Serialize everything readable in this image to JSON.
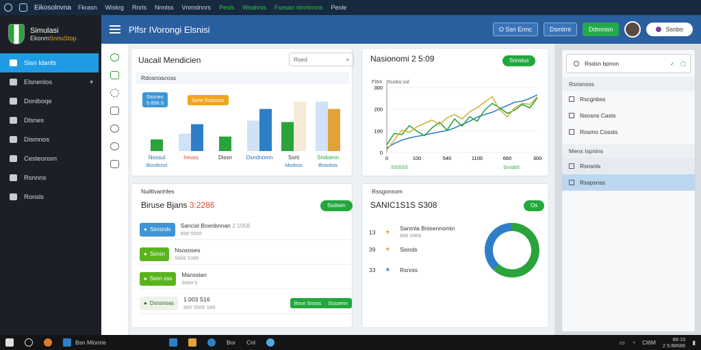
{
  "topbar": {
    "app_name": "Eikosolnvna",
    "menu": [
      "Fkrasn",
      "Wiskrg",
      "Rnrls",
      "Nnnlss",
      "Vnmslnnrs",
      "Pesls",
      "Weahnis",
      "Fsesan nlnnlnnns",
      "Peole"
    ],
    "menu_colors": [
      "#cdd6df",
      "#cdd6df",
      "#cdd6df",
      "#cdd6df",
      "#cdd6df",
      "#33c14a",
      "#33c14a",
      "#33c14a",
      "#cdd6df"
    ]
  },
  "sidebar": {
    "logo_line1": "Simulasi",
    "logo_line2a": "Ekonm",
    "logo_line2b": "SnnuStop",
    "items": [
      {
        "label": "Sisn Idanfs",
        "active": true
      },
      {
        "label": "Elsnenlos",
        "chevron": true
      },
      {
        "label": "Doniboqe"
      },
      {
        "label": "Dlsnes"
      },
      {
        "label": "Dismnos"
      },
      {
        "label": "Cesteonsm"
      },
      {
        "label": "Rsnnns"
      },
      {
        "label": "Ronsls"
      }
    ]
  },
  "header": {
    "title": "Plfsr IVorongi Elsnisi",
    "btn1": "O Ssn Ennc",
    "btn2": "Dsmlrnt",
    "btn3": "Ddmnisn",
    "pill": "Ssnbo"
  },
  "card1": {
    "title": "Uacail Mendicien",
    "search_placeholder": "Rsed",
    "close_icon": "×",
    "subtitle": "Rdosnoscoss",
    "badge1_line1": "Sssnes",
    "badge1_line2": "5 856 5",
    "badge2": "Ssns Ssdsosu",
    "categories": [
      "Nossul",
      "Ireuss",
      "Dissn",
      "Dsndnomn",
      "Ssnt",
      "Sndoenn"
    ],
    "cat_sub": [
      "Bosdsnsl",
      "",
      "",
      "",
      "Idsdnss",
      "Bosolsis"
    ],
    "cat_colors": [
      "#1f6fb5",
      "#e04a2c",
      "#333",
      "#1f6fb5",
      "#333",
      "#2aa43a"
    ]
  },
  "chart_data": {
    "type": "bar",
    "categories": [
      "Nossul",
      "Ireuss",
      "Dissn",
      "Dsndnomn",
      "Ssnt",
      "Sndoenn"
    ],
    "series": [
      {
        "color": "#cfe2f7",
        "values": [
          0,
          24,
          0,
          42,
          0,
          68
        ]
      },
      {
        "color": "#2aa43a",
        "values": [
          16,
          0,
          20,
          0,
          40,
          0
        ]
      },
      {
        "color": "#2f7fc8",
        "values": [
          0,
          37,
          0,
          58,
          0,
          0
        ]
      },
      {
        "color": "#f5ead8",
        "values": [
          0,
          0,
          0,
          0,
          68,
          0
        ]
      },
      {
        "color": "#e2a23a",
        "values": [
          0,
          0,
          0,
          0,
          0,
          58
        ]
      }
    ],
    "ylim": [
      0,
      80
    ]
  },
  "card2": {
    "title": "Nasionomi 2 5:09",
    "button": "Snnslus",
    "yaxis_caption": "Fl84",
    "yaxis_caption2": "Susbs:ssl",
    "y_ticks": [
      "300",
      "200",
      "100",
      "0"
    ],
    "x_ticks": [
      "0",
      "100",
      "540",
      "1100",
      "660",
      "300"
    ],
    "legend_left": "SSSSS",
    "legend_right": "Srnsb5"
  },
  "line_data": {
    "type": "line",
    "x": [
      0,
      1,
      2,
      3,
      4,
      5,
      6,
      7,
      8,
      9,
      10,
      11,
      12,
      13,
      14,
      15,
      16,
      17,
      18,
      19,
      20
    ],
    "series": [
      {
        "color": "#2f7fc8",
        "values": [
          20,
          40,
          55,
          65,
          72,
          78,
          85,
          92,
          98,
          110,
          125,
          140,
          158,
          170,
          180,
          195,
          210,
          225,
          230,
          242,
          258
        ]
      },
      {
        "color": "#2aa43a",
        "values": [
          35,
          85,
          80,
          120,
          95,
          75,
          110,
          135,
          100,
          150,
          118,
          160,
          140,
          190,
          220,
          200,
          175,
          190,
          215,
          200,
          245
        ]
      },
      {
        "color": "#d2b23a",
        "values": [
          10,
          55,
          100,
          90,
          115,
          130,
          145,
          125,
          155,
          170,
          150,
          182,
          200,
          225,
          250,
          190,
          160,
          200,
          220,
          215,
          250
        ]
      }
    ],
    "ylim": [
      0,
      320
    ]
  },
  "card3": {
    "subtitle": "Nuiltlvanhfes",
    "title_a": "Biruse Bjans",
    "title_b": "3:2286",
    "button": "Ssdsen",
    "rows": [
      {
        "tag": "Ssnsnds",
        "tag_color": "blue",
        "name": "Sancisl Bnenbnnan",
        "name_b": "2 1058",
        "sub": "858 5565"
      },
      {
        "tag": "Ssnsn",
        "tag_color": "green",
        "name": "Nsososes",
        "name_b": "",
        "sub": "5888 5386"
      },
      {
        "tag": "Ssnn sss",
        "tag_color": "green",
        "name": "Mansslan",
        "name_b": "",
        "sub": "5888 5"
      },
      {
        "tag": "Dsnsnsas",
        "tag_color": "light",
        "name": "1.003 S16",
        "name_b": "",
        "sub": "885 5588 S86",
        "action1": "Bsnn Ssoss",
        "action2": "Ssssenn"
      }
    ]
  },
  "card4": {
    "subtitle": "Rssgonsom",
    "title": "SANIC1S1S S308",
    "button": "Os",
    "items": [
      {
        "num": "13",
        "label": "Sanmla Bnisennomin",
        "sub": "888 5968",
        "icon_color": "#e2a23a"
      },
      {
        "num": "39",
        "label": "Sisnds",
        "sub": "",
        "icon_color": "#e2a23a"
      },
      {
        "num": "33",
        "label": "Rsnnis",
        "sub": "",
        "icon_color": "#2f7fc8"
      }
    ]
  },
  "donut_data": {
    "type": "pie",
    "values": [
      62,
      38
    ],
    "colors": [
      "#2aa43a",
      "#2f7fc8"
    ]
  },
  "right_panel": {
    "search_placeholder": "Rsdsn bpnon",
    "section1": "Rsnsnsss",
    "items1": [
      "Rscgnbss",
      "Nsosns Casts",
      "Rosmo Cossts"
    ],
    "section2": "Mens Ispnins",
    "items2": [
      "Rsnsnls",
      "Rsspsnss"
    ]
  },
  "taskbar": {
    "items": [
      "Bsn Mlonrie",
      "Bor",
      "Cnl"
    ],
    "time": "88:15",
    "date": "2 5:88586",
    "extra": "Cl6M"
  }
}
